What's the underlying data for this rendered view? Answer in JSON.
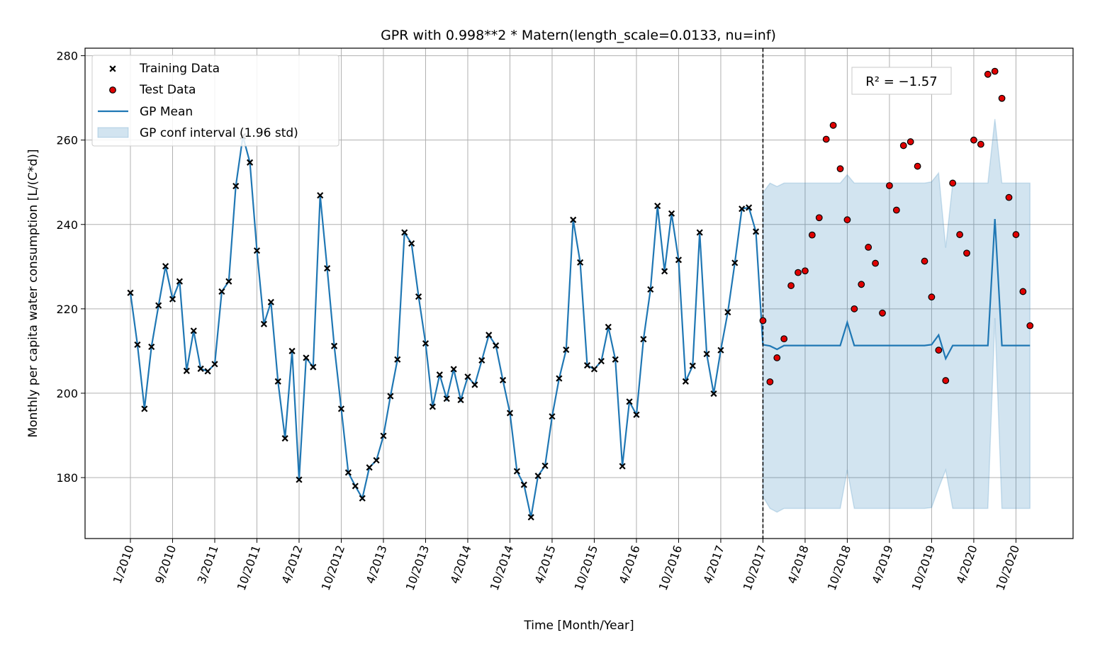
{
  "chart_data": {
    "type": "line",
    "title": "GPR with 0.998**2 * Matern(length_scale=0.0133, nu=inf)",
    "xlabel": "Time [Month/Year]",
    "ylabel": "Monthly per capita water consumption [L/(C*d)]",
    "ylim": [
      165,
      282
    ],
    "yticks": [
      180,
      200,
      220,
      240,
      260,
      280
    ],
    "x_start": "1/2010",
    "x_end": "12/2020",
    "xtick_labels": [
      "1/2010",
      "9/2010",
      "3/2011",
      "10/2011",
      "4/2012",
      "10/2012",
      "4/2013",
      "10/2013",
      "4/2014",
      "10/2014",
      "4/2015",
      "10/2015",
      "4/2016",
      "10/2016",
      "4/2017",
      "10/2017",
      "4/2018",
      "10/2018",
      "4/2019",
      "10/2019",
      "4/2020",
      "10/2020"
    ],
    "xtick_months": [
      0,
      6,
      12,
      18,
      24,
      30,
      36,
      42,
      48,
      54,
      60,
      66,
      72,
      78,
      84,
      90,
      96,
      102,
      108,
      114,
      120,
      126
    ],
    "split_month": 90,
    "grid": true,
    "legend_position": "top-left",
    "legend": [
      "Training Data",
      "Test Data",
      "GP Mean",
      "GP conf interval (1.96 std)"
    ],
    "annotation": "R² = −1.57",
    "series": [
      {
        "name": "Training Data",
        "marker": "x",
        "color": "#000000",
        "values": [
          223.8,
          211.5,
          196.3,
          211.0,
          220.8,
          230.1,
          222.3,
          226.5,
          205.3,
          214.8,
          205.8,
          205.2,
          206.9,
          224.1,
          226.5,
          249.1,
          260.9,
          254.7,
          233.8,
          216.4,
          221.6,
          202.8,
          189.3,
          210.0,
          179.5,
          208.4,
          206.2,
          246.9,
          229.6,
          211.2,
          196.3,
          181.2,
          178.0,
          175.1,
          182.4,
          184.1,
          189.9,
          199.3,
          208.0,
          238.1,
          235.5,
          222.9,
          211.8,
          196.8,
          204.4,
          198.7,
          205.7,
          198.4,
          203.9,
          202.0,
          207.8,
          213.8,
          211.3,
          203.1,
          195.3,
          181.5,
          178.3,
          170.6,
          180.4,
          182.8,
          194.5,
          203.5,
          210.3,
          241.1,
          231.0,
          206.6,
          205.7,
          207.6,
          215.7,
          208.0,
          182.7,
          198.0,
          194.9,
          212.8,
          224.6,
          244.4,
          228.9,
          242.6,
          231.6,
          202.8,
          206.5,
          238.1,
          209.3,
          199.9,
          210.2,
          219.2,
          230.9,
          243.7,
          244.0,
          238.3
        ]
      },
      {
        "name": "Test Data",
        "marker": "o",
        "color": "#e00000",
        "values": [
          217.2,
          202.7,
          208.4,
          212.9,
          225.5,
          228.6,
          229.0,
          237.5,
          241.6,
          260.2,
          263.5,
          253.2,
          241.1,
          220.0,
          225.8,
          234.6,
          230.8,
          219.0,
          249.2,
          243.4,
          258.7,
          259.6,
          253.8,
          231.3,
          222.8,
          210.2,
          203.0,
          249.8,
          237.6,
          233.2,
          260.0,
          259.0,
          275.6,
          276.3,
          269.9,
          246.4,
          237.6,
          224.1,
          216.0
        ]
      },
      {
        "name": "GP Mean",
        "color": "#1f77b4",
        "values": [
          211.5,
          211.2,
          210.4,
          211.3,
          211.3,
          211.3,
          211.3,
          211.3,
          211.3,
          211.3,
          211.3,
          211.3,
          216.8,
          211.3,
          211.3,
          211.3,
          211.3,
          211.3,
          211.3,
          211.3,
          211.3,
          211.3,
          211.3,
          211.3,
          211.5,
          213.8,
          208.2,
          211.3,
          211.3,
          211.3,
          211.3,
          211.3,
          211.3,
          241.3,
          211.3,
          211.3,
          211.3,
          211.3,
          211.3
        ]
      },
      {
        "name": "GP conf interval (1.96 std)",
        "color": "#1f77b4",
        "lower": [
          175.5,
          172.7,
          171.8,
          172.7,
          172.7,
          172.7,
          172.7,
          172.7,
          172.7,
          172.7,
          172.7,
          172.7,
          181.8,
          172.7,
          172.7,
          172.7,
          172.7,
          172.7,
          172.7,
          172.7,
          172.7,
          172.7,
          172.7,
          172.7,
          172.9,
          177.5,
          181.8,
          172.7,
          172.7,
          172.7,
          172.7,
          172.7,
          172.7,
          217.8,
          172.7,
          172.7,
          172.7,
          172.7,
          172.7
        ],
        "upper": [
          247.5,
          249.8,
          249.0,
          249.8,
          249.8,
          249.8,
          249.8,
          249.8,
          249.8,
          249.8,
          249.8,
          249.8,
          251.8,
          249.8,
          249.8,
          249.8,
          249.8,
          249.8,
          249.8,
          249.8,
          249.8,
          249.8,
          249.8,
          249.8,
          250.1,
          252.2,
          234.5,
          249.8,
          249.8,
          249.8,
          249.8,
          249.8,
          249.8,
          265.0,
          249.8,
          249.8,
          249.8,
          249.8,
          249.8
        ]
      }
    ]
  }
}
